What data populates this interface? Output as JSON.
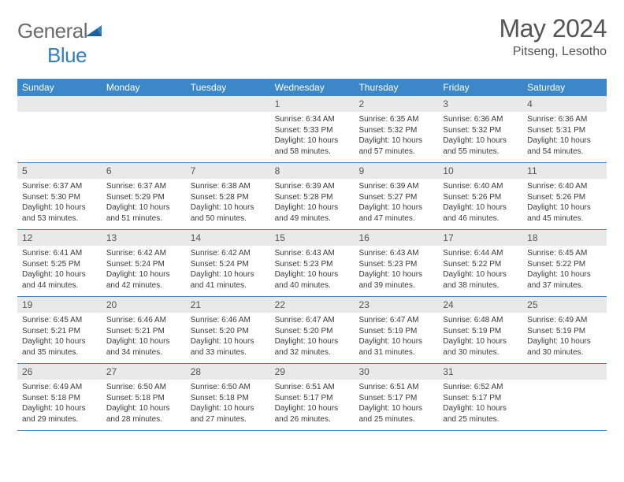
{
  "brand": {
    "word1": "General",
    "word2": "Blue"
  },
  "title": "May 2024",
  "location": "Pitseng, Lesotho",
  "colors": {
    "header_bg": "#3b87c8",
    "daynum_bg": "#e9e9e9",
    "border": "#3b87c8",
    "text": "#3a3a3a",
    "title_text": "#555555",
    "logo_gray": "#6b6b6b",
    "logo_blue": "#2f7fc1"
  },
  "dayNames": [
    "Sunday",
    "Monday",
    "Tuesday",
    "Wednesday",
    "Thursday",
    "Friday",
    "Saturday"
  ],
  "weeks": [
    [
      {
        "n": "",
        "sr": "",
        "ss": "",
        "dl": ""
      },
      {
        "n": "",
        "sr": "",
        "ss": "",
        "dl": ""
      },
      {
        "n": "",
        "sr": "",
        "ss": "",
        "dl": ""
      },
      {
        "n": "1",
        "sr": "6:34 AM",
        "ss": "5:33 PM",
        "dl": "10 hours and 58 minutes."
      },
      {
        "n": "2",
        "sr": "6:35 AM",
        "ss": "5:32 PM",
        "dl": "10 hours and 57 minutes."
      },
      {
        "n": "3",
        "sr": "6:36 AM",
        "ss": "5:32 PM",
        "dl": "10 hours and 55 minutes."
      },
      {
        "n": "4",
        "sr": "6:36 AM",
        "ss": "5:31 PM",
        "dl": "10 hours and 54 minutes."
      }
    ],
    [
      {
        "n": "5",
        "sr": "6:37 AM",
        "ss": "5:30 PM",
        "dl": "10 hours and 53 minutes."
      },
      {
        "n": "6",
        "sr": "6:37 AM",
        "ss": "5:29 PM",
        "dl": "10 hours and 51 minutes."
      },
      {
        "n": "7",
        "sr": "6:38 AM",
        "ss": "5:28 PM",
        "dl": "10 hours and 50 minutes."
      },
      {
        "n": "8",
        "sr": "6:39 AM",
        "ss": "5:28 PM",
        "dl": "10 hours and 49 minutes."
      },
      {
        "n": "9",
        "sr": "6:39 AM",
        "ss": "5:27 PM",
        "dl": "10 hours and 47 minutes."
      },
      {
        "n": "10",
        "sr": "6:40 AM",
        "ss": "5:26 PM",
        "dl": "10 hours and 46 minutes."
      },
      {
        "n": "11",
        "sr": "6:40 AM",
        "ss": "5:26 PM",
        "dl": "10 hours and 45 minutes."
      }
    ],
    [
      {
        "n": "12",
        "sr": "6:41 AM",
        "ss": "5:25 PM",
        "dl": "10 hours and 44 minutes."
      },
      {
        "n": "13",
        "sr": "6:42 AM",
        "ss": "5:24 PM",
        "dl": "10 hours and 42 minutes."
      },
      {
        "n": "14",
        "sr": "6:42 AM",
        "ss": "5:24 PM",
        "dl": "10 hours and 41 minutes."
      },
      {
        "n": "15",
        "sr": "6:43 AM",
        "ss": "5:23 PM",
        "dl": "10 hours and 40 minutes."
      },
      {
        "n": "16",
        "sr": "6:43 AM",
        "ss": "5:23 PM",
        "dl": "10 hours and 39 minutes."
      },
      {
        "n": "17",
        "sr": "6:44 AM",
        "ss": "5:22 PM",
        "dl": "10 hours and 38 minutes."
      },
      {
        "n": "18",
        "sr": "6:45 AM",
        "ss": "5:22 PM",
        "dl": "10 hours and 37 minutes."
      }
    ],
    [
      {
        "n": "19",
        "sr": "6:45 AM",
        "ss": "5:21 PM",
        "dl": "10 hours and 35 minutes."
      },
      {
        "n": "20",
        "sr": "6:46 AM",
        "ss": "5:21 PM",
        "dl": "10 hours and 34 minutes."
      },
      {
        "n": "21",
        "sr": "6:46 AM",
        "ss": "5:20 PM",
        "dl": "10 hours and 33 minutes."
      },
      {
        "n": "22",
        "sr": "6:47 AM",
        "ss": "5:20 PM",
        "dl": "10 hours and 32 minutes."
      },
      {
        "n": "23",
        "sr": "6:47 AM",
        "ss": "5:19 PM",
        "dl": "10 hours and 31 minutes."
      },
      {
        "n": "24",
        "sr": "6:48 AM",
        "ss": "5:19 PM",
        "dl": "10 hours and 30 minutes."
      },
      {
        "n": "25",
        "sr": "6:49 AM",
        "ss": "5:19 PM",
        "dl": "10 hours and 30 minutes."
      }
    ],
    [
      {
        "n": "26",
        "sr": "6:49 AM",
        "ss": "5:18 PM",
        "dl": "10 hours and 29 minutes."
      },
      {
        "n": "27",
        "sr": "6:50 AM",
        "ss": "5:18 PM",
        "dl": "10 hours and 28 minutes."
      },
      {
        "n": "28",
        "sr": "6:50 AM",
        "ss": "5:18 PM",
        "dl": "10 hours and 27 minutes."
      },
      {
        "n": "29",
        "sr": "6:51 AM",
        "ss": "5:17 PM",
        "dl": "10 hours and 26 minutes."
      },
      {
        "n": "30",
        "sr": "6:51 AM",
        "ss": "5:17 PM",
        "dl": "10 hours and 25 minutes."
      },
      {
        "n": "31",
        "sr": "6:52 AM",
        "ss": "5:17 PM",
        "dl": "10 hours and 25 minutes."
      },
      {
        "n": "",
        "sr": "",
        "ss": "",
        "dl": ""
      }
    ]
  ],
  "labels": {
    "sunrise": "Sunrise:",
    "sunset": "Sunset:",
    "daylight": "Daylight:"
  }
}
